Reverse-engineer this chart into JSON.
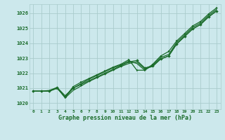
{
  "background_color": "#cce8ec",
  "grid_color": "#aacccc",
  "line_color": "#1a6b2a",
  "text_color": "#1a6b2a",
  "xlabel": "Graphe pression niveau de la mer (hPa)",
  "ylim": [
    1019.6,
    1026.6
  ],
  "xlim": [
    -0.5,
    23.5
  ],
  "yticks": [
    1020,
    1021,
    1022,
    1023,
    1024,
    1025,
    1026
  ],
  "xtick_labels": [
    "0",
    "1",
    "2",
    "3",
    "4",
    "5",
    "6",
    "7",
    "8",
    "9",
    "10",
    "11",
    "12",
    "13",
    "14",
    "15",
    "16",
    "17",
    "18",
    "19",
    "20",
    "21",
    "22",
    "23"
  ],
  "series": [
    [
      1020.8,
      1020.8,
      1020.8,
      1021.0,
      1020.4,
      1021.0,
      1021.3,
      1021.6,
      1021.85,
      1022.1,
      1022.35,
      1022.55,
      1022.8,
      1022.65,
      1022.2,
      1022.55,
      1023.05,
      1023.25,
      1024.05,
      1024.55,
      1025.05,
      1025.35,
      1025.85,
      1026.25
    ],
    [
      1020.8,
      1020.8,
      1020.8,
      1021.0,
      1020.4,
      1021.1,
      1021.4,
      1021.65,
      1021.9,
      1022.15,
      1022.4,
      1022.6,
      1022.9,
      1022.2,
      1022.2,
      1022.6,
      1023.15,
      1023.45,
      1024.15,
      1024.65,
      1025.15,
      1025.45,
      1025.95,
      1026.35
    ],
    [
      1020.8,
      1020.8,
      1020.8,
      1021.05,
      1020.5,
      1021.0,
      1021.25,
      1021.5,
      1021.75,
      1022.0,
      1022.25,
      1022.5,
      1022.75,
      1022.85,
      1022.35,
      1022.5,
      1022.95,
      1023.15,
      1023.95,
      1024.45,
      1024.95,
      1025.25,
      1025.75,
      1026.15
    ],
    [
      1020.8,
      1020.8,
      1020.85,
      1021.05,
      1020.35,
      1020.85,
      1021.15,
      1021.45,
      1021.7,
      1021.95,
      1022.2,
      1022.45,
      1022.65,
      1022.75,
      1022.3,
      1022.45,
      1022.95,
      1023.15,
      1023.95,
      1024.45,
      1024.95,
      1025.25,
      1025.75,
      1026.15
    ]
  ]
}
